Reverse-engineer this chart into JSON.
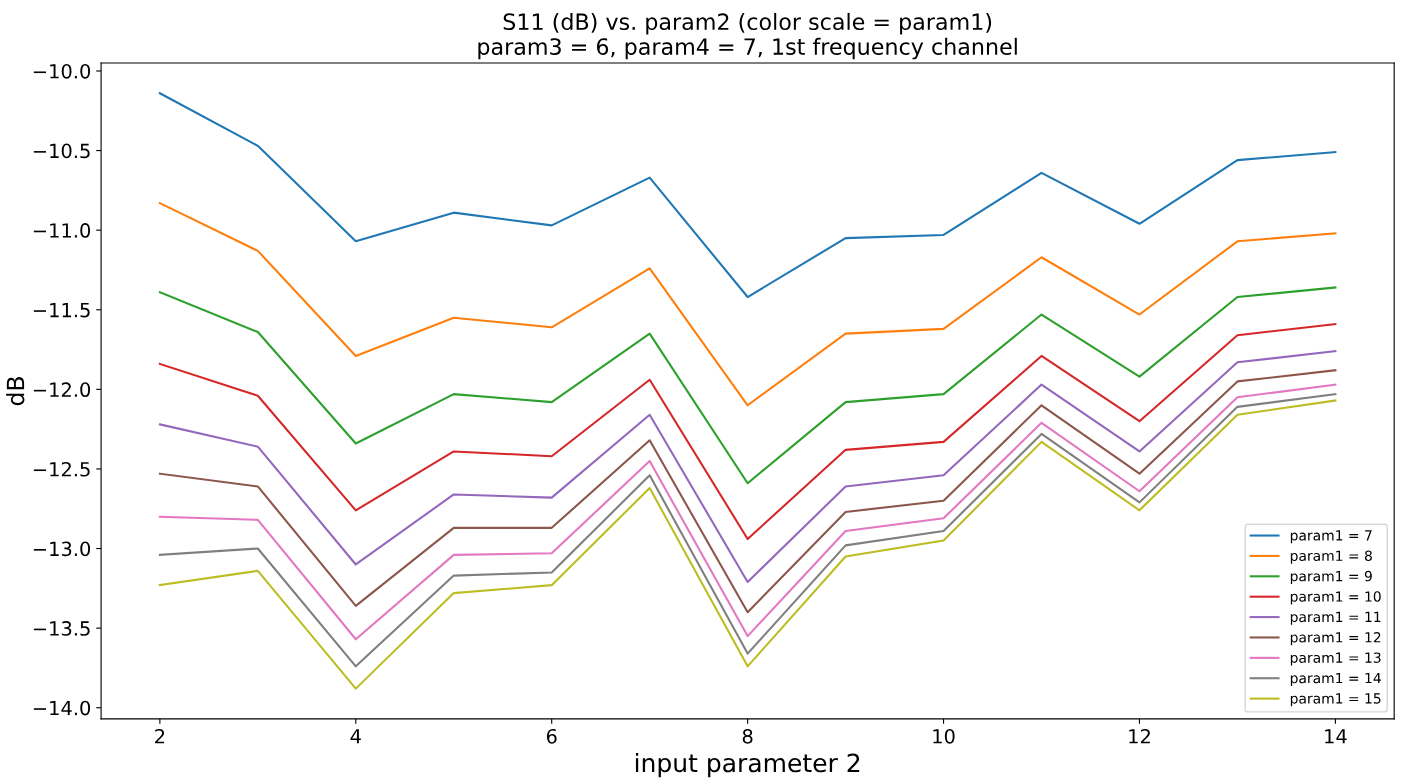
{
  "chart_data": {
    "type": "line",
    "title": "S11 (dB) vs. param2 (color scale = param1)\nparam3 = 6, param4 = 7, 1st frequency channel",
    "xlabel": "input parameter 2",
    "ylabel": "dB",
    "x": [
      2,
      3,
      4,
      5,
      6,
      7,
      8,
      9,
      10,
      11,
      12,
      13,
      14
    ],
    "series": [
      {
        "name": "param1 = 7",
        "color": "#1f77b4",
        "values": [
          -10.14,
          -10.47,
          -11.07,
          -10.89,
          -10.97,
          -10.67,
          -11.42,
          -11.05,
          -11.03,
          -10.64,
          -10.96,
          -10.56,
          -10.51
        ]
      },
      {
        "name": "param1 = 8",
        "color": "#ff7f0e",
        "values": [
          -10.83,
          -11.13,
          -11.79,
          -11.55,
          -11.61,
          -11.24,
          -12.1,
          -11.65,
          -11.62,
          -11.17,
          -11.53,
          -11.07,
          -11.02
        ]
      },
      {
        "name": "param1 = 9",
        "color": "#2ca02c",
        "values": [
          -11.39,
          -11.64,
          -12.34,
          -12.03,
          -12.08,
          -11.65,
          -12.59,
          -12.08,
          -12.03,
          -11.53,
          -11.92,
          -11.42,
          -11.36
        ]
      },
      {
        "name": "param1 = 10",
        "color": "#d62728",
        "values": [
          -11.84,
          -12.04,
          -12.76,
          -12.39,
          -12.42,
          -11.94,
          -12.94,
          -12.38,
          -12.33,
          -11.79,
          -12.2,
          -11.66,
          -11.59
        ]
      },
      {
        "name": "param1 = 11",
        "color": "#9467bd",
        "values": [
          -12.22,
          -12.36,
          -13.1,
          -12.66,
          -12.68,
          -12.16,
          -13.21,
          -12.61,
          -12.54,
          -11.97,
          -12.39,
          -11.83,
          -11.76
        ]
      },
      {
        "name": "param1 = 12",
        "color": "#8c564b",
        "values": [
          -12.53,
          -12.61,
          -13.36,
          -12.87,
          -12.87,
          -12.32,
          -13.4,
          -12.77,
          -12.7,
          -12.1,
          -12.53,
          -11.95,
          -11.88
        ]
      },
      {
        "name": "param1 = 13",
        "color": "#e377c2",
        "values": [
          -12.8,
          -12.82,
          -13.57,
          -13.04,
          -13.03,
          -12.45,
          -13.55,
          -12.89,
          -12.81,
          -12.21,
          -12.64,
          -12.05,
          -11.97
        ]
      },
      {
        "name": "param1 = 14",
        "color": "#7f7f7f",
        "values": [
          -13.04,
          -13.0,
          -13.74,
          -13.17,
          -13.15,
          -12.54,
          -13.66,
          -12.98,
          -12.89,
          -12.28,
          -12.71,
          -12.11,
          -12.03
        ]
      },
      {
        "name": "param1 = 15",
        "color": "#bcbd22",
        "values": [
          -13.23,
          -13.14,
          -13.88,
          -13.28,
          -13.23,
          -12.62,
          -13.74,
          -13.05,
          -12.95,
          -12.33,
          -12.76,
          -12.16,
          -12.07
        ]
      }
    ],
    "xlim": [
      1.4,
      14.6
    ],
    "xticks": [
      2,
      4,
      6,
      8,
      10,
      12,
      14
    ],
    "ylim": [
      -14.07,
      -9.95
    ],
    "yticks": [
      {
        "value": -14,
        "label": "−14.0"
      },
      {
        "value": -13.5,
        "label": "−13.5"
      },
      {
        "value": -13,
        "label": "−13.0"
      },
      {
        "value": -12.5,
        "label": "−12.5"
      },
      {
        "value": -12,
        "label": "−12.0"
      },
      {
        "value": -11.5,
        "label": "−11.5"
      },
      {
        "value": -11,
        "label": "−11.0"
      },
      {
        "value": -10.5,
        "label": "−10.5"
      },
      {
        "value": -10,
        "label": "−10.0"
      }
    ],
    "grid": false,
    "legend": "lower right",
    "marker": "none",
    "line_style": "solid"
  }
}
